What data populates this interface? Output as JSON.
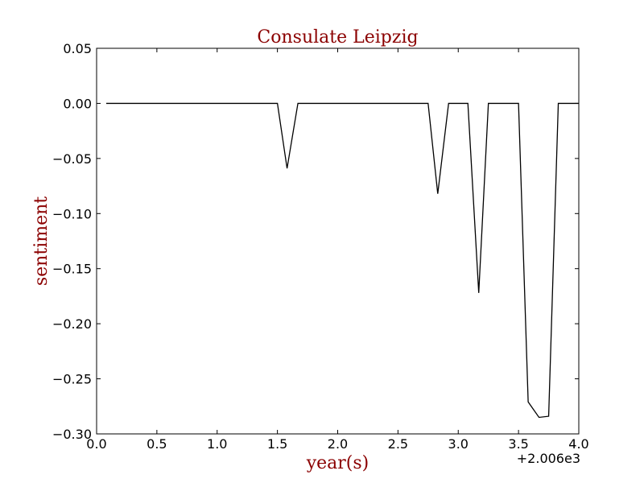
{
  "chart_data": {
    "type": "line",
    "title": "Consulate Leipzig",
    "xlabel": "year(s)",
    "ylabel": "sentiment",
    "x_offset_label": "+2.006e3",
    "xlim": [
      0.0,
      4.0
    ],
    "ylim": [
      -0.3,
      0.05
    ],
    "xticks": [
      "0.0",
      "0.5",
      "1.0",
      "1.5",
      "2.0",
      "2.5",
      "3.0",
      "3.5",
      "4.0"
    ],
    "xtick_values": [
      0.0,
      0.5,
      1.0,
      1.5,
      2.0,
      2.5,
      3.0,
      3.5,
      4.0
    ],
    "yticks": [
      "0.05",
      "0.00",
      "−0.05",
      "−0.10",
      "−0.15",
      "−0.20",
      "−0.25",
      "−0.30"
    ],
    "ytick_values": [
      0.05,
      0.0,
      -0.05,
      -0.1,
      -0.15,
      -0.2,
      -0.25,
      -0.3
    ],
    "grid": false,
    "line_color": "#000000",
    "series": [
      {
        "x": [
          0.08,
          1.5,
          1.58,
          1.67,
          2.75,
          2.83,
          2.92,
          3.08,
          3.17,
          3.25,
          3.5,
          3.58,
          3.67,
          3.75,
          3.83,
          4.0
        ],
        "y": [
          0.0,
          0.0,
          -0.059,
          0.0,
          0.0,
          -0.082,
          0.0,
          0.0,
          -0.172,
          0.0,
          0.0,
          -0.271,
          -0.285,
          -0.284,
          0.0,
          0.0
        ]
      }
    ]
  }
}
